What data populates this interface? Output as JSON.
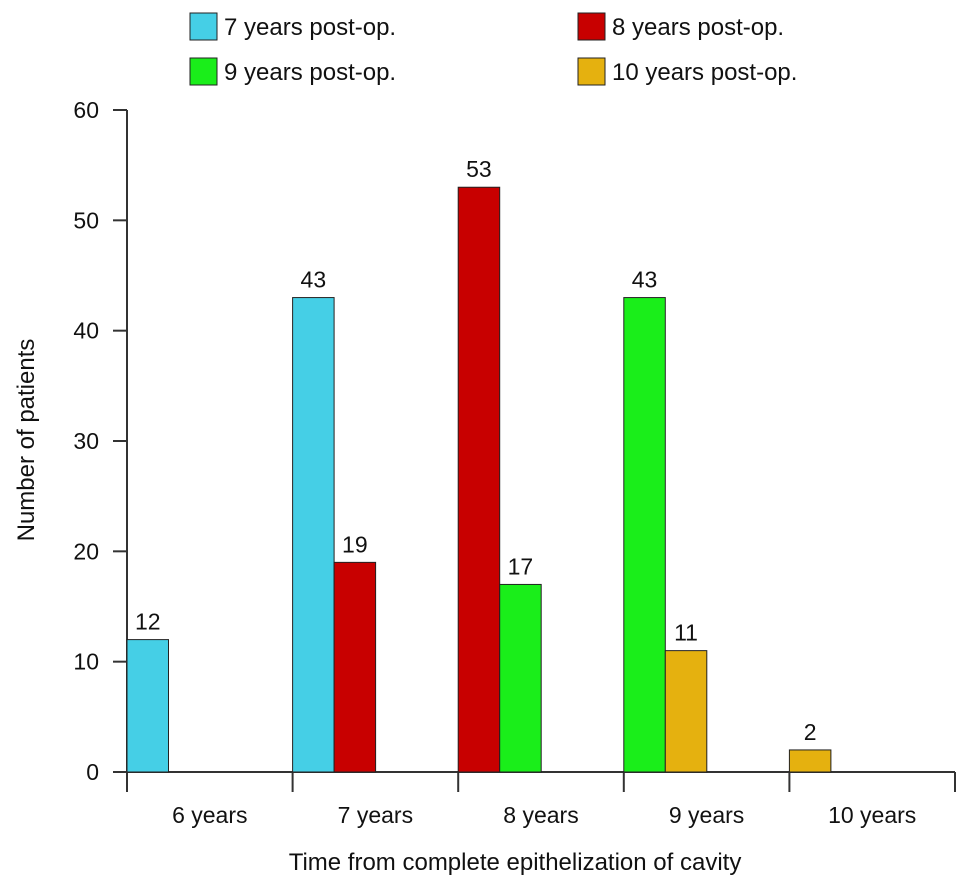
{
  "chart_data": {
    "type": "bar",
    "title": "",
    "xlabel": "Time from complete epithelization of cavity",
    "ylabel": "Number of patients",
    "categories": [
      "6 years",
      "7 years",
      "8 years",
      "9 years",
      "10 years"
    ],
    "ylim": [
      0,
      60
    ],
    "yticks": [
      0,
      10,
      20,
      30,
      40,
      50,
      60
    ],
    "legend_position": "top",
    "series": [
      {
        "name": "7 years post-op.",
        "color": "#45cfe6",
        "values": [
          12,
          43,
          null,
          null,
          null
        ]
      },
      {
        "name": "8 years post-op.",
        "color": "#c80000",
        "values": [
          null,
          19,
          53,
          null,
          null
        ]
      },
      {
        "name": "9 years post-op.",
        "color": "#1aee1a",
        "values": [
          null,
          null,
          17,
          43,
          null
        ]
      },
      {
        "name": "10 years post-op.",
        "color": "#e5b10f",
        "values": [
          null,
          null,
          null,
          11,
          2
        ]
      }
    ]
  }
}
